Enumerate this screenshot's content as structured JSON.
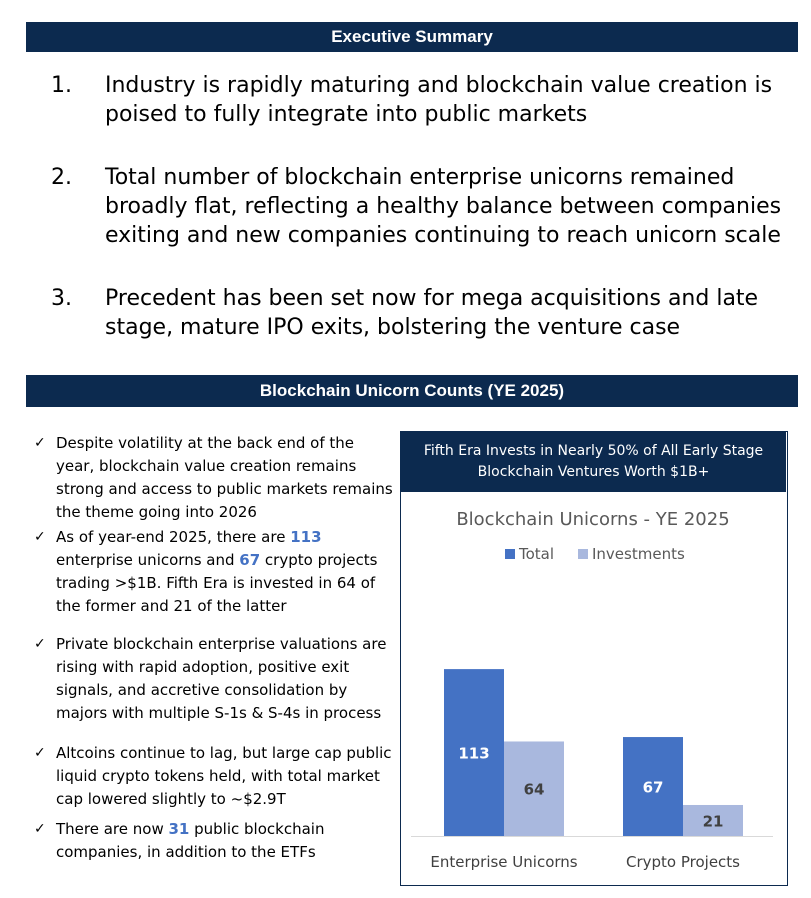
{
  "executive_summary": {
    "title": "Executive Summary",
    "items": [
      {
        "num": "1.",
        "text": "Industry is rapidly maturing and blockchain value creation is poised to fully integrate into public markets"
      },
      {
        "num": "2.",
        "text": "Total number of blockchain enterprise unicorns remained broadly flat, reflecting a healthy balance between companies exiting and new companies continuing to reach unicorn scale"
      },
      {
        "num": "3.",
        "text": "Precedent has been set now for mega acquisitions and late stage, mature IPO exits, bolstering the venture case"
      }
    ]
  },
  "unicorn_section": {
    "title": "Blockchain Unicorn Counts (YE 2025)",
    "check_symbol": "✓",
    "bullets": [
      {
        "parts": [
          {
            "t": "Despite volatility at the back end of the year, blockchain value creation remains strong and access to public markets remains the theme going into 2026"
          }
        ]
      },
      {
        "parts": [
          {
            "t": "As of year-end 2025, there are "
          },
          {
            "t": "113",
            "hl": true
          },
          {
            "t": " enterprise unicorns and "
          },
          {
            "t": "67",
            "hl": true
          },
          {
            "t": " crypto projects trading >$1B. Fifth Era is invested in 64 of the former and 21 of the latter"
          }
        ]
      },
      {
        "parts": [
          {
            "t": "Private blockchain enterprise valuations are rising with rapid adoption, positive exit signals, and accretive consolidation by majors with multiple S-1s & S-4s in process"
          }
        ]
      },
      {
        "parts": [
          {
            "t": "Altcoins continue to lag, but large cap public liquid crypto tokens held, with total market cap lowered slightly to ~$2.9T"
          }
        ]
      },
      {
        "parts": [
          {
            "t": "There are now "
          },
          {
            "t": "31",
            "hl": true
          },
          {
            "t": " public blockchain companies, in addition to the ETFs"
          }
        ]
      }
    ]
  },
  "chart_header": {
    "line1": "Fifth Era Invests in Nearly 50% of All Early Stage",
    "line2": "Blockchain Ventures Worth $1B+"
  },
  "colors": {
    "navy": "#0c2a4f",
    "total": "#4472c4",
    "investments": "#a9b8de",
    "highlight": "#4472c4"
  },
  "chart_data": {
    "type": "bar",
    "title": "Blockchain Unicorns - YE 2025",
    "categories": [
      "Enterprise Unicorns",
      "Crypto Projects"
    ],
    "series": [
      {
        "name": "Total",
        "values": [
          113,
          67
        ]
      },
      {
        "name": "Investments",
        "values": [
          64,
          21
        ]
      }
    ],
    "legend": "top-center",
    "grid": false,
    "xlabel": "",
    "ylabel": "",
    "ylim": [
      0,
      130
    ]
  }
}
